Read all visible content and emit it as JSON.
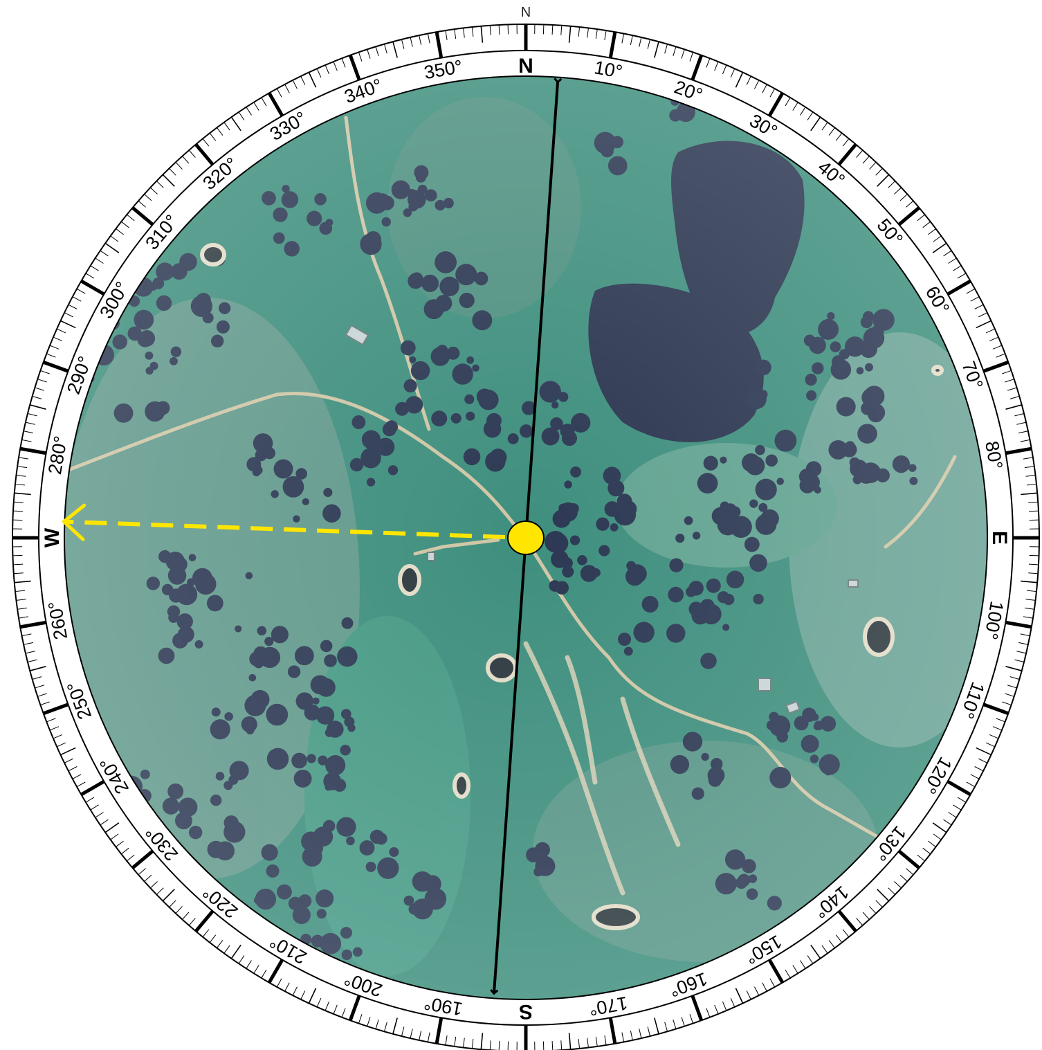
{
  "compass": {
    "north_indicator": "N",
    "cardinals": {
      "north": "N",
      "east": "E",
      "south": "S",
      "west": "W"
    },
    "degree_labels": [
      "10°",
      "20°",
      "30°",
      "40°",
      "50°",
      "60°",
      "70°",
      "80°",
      "100°",
      "110°",
      "120°",
      "130°",
      "140°",
      "150°",
      "160°",
      "170°",
      "190°",
      "200°",
      "210°",
      "220°",
      "230°",
      "240°",
      "250°",
      "260°",
      "280°",
      "290°",
      "300°",
      "310°",
      "320°",
      "330°",
      "340°",
      "350°"
    ],
    "degree_values": [
      10,
      20,
      30,
      40,
      50,
      60,
      70,
      80,
      100,
      110,
      120,
      130,
      140,
      150,
      160,
      170,
      190,
      200,
      210,
      220,
      230,
      240,
      250,
      260,
      280,
      290,
      300,
      310,
      320,
      330,
      340,
      350
    ],
    "tick_step_deg": 1
  },
  "bearings": {
    "north_line_deg": 4,
    "marked_bearing_deg": 272,
    "north_line_color": "#000000",
    "marked_bearing_color": "#ffe600",
    "origin_marker_color": "#ffe600"
  },
  "map": {
    "type": "satellite",
    "base_color": "#3f8f7e",
    "features": [
      "trees",
      "dirt-tracks",
      "dams",
      "farm-buildings",
      "creek"
    ]
  }
}
